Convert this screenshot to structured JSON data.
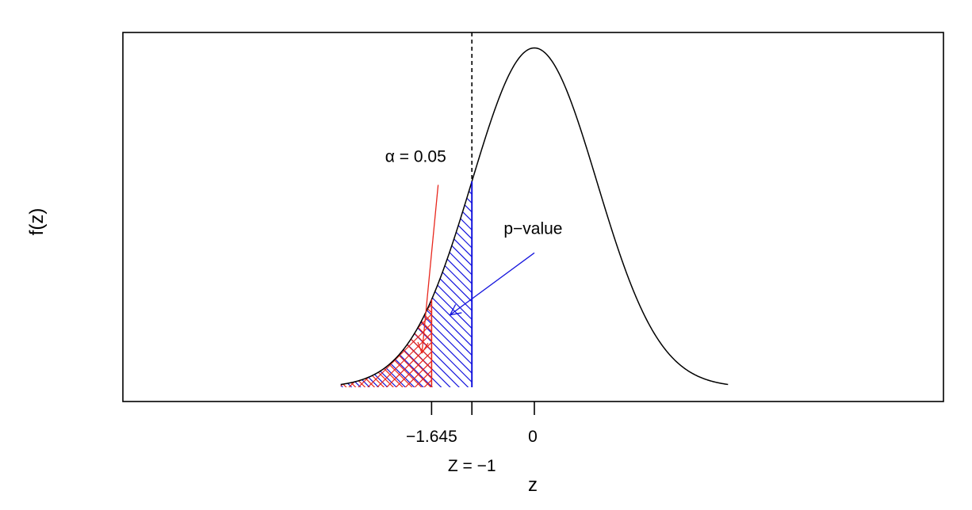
{
  "chart_data": {
    "type": "area",
    "title": "",
    "xlabel": "z",
    "ylabel": "f(z)",
    "xlim": [
      -3.1,
      3.1
    ],
    "ylim": [
      0,
      0.41
    ],
    "density": "standard normal",
    "curve_range": [
      -3.1,
      3.1
    ],
    "x_ticks": [
      {
        "value": -1.645,
        "label": "−1.645"
      },
      {
        "value": -1,
        "label": ""
      },
      {
        "value": 0,
        "label": "0"
      }
    ],
    "observed": {
      "value": -1,
      "label": "Z = −1",
      "line": "dashed"
    },
    "critical": {
      "value": -1.645
    },
    "regions": [
      {
        "name": "alpha",
        "from": -3.1,
        "to": -1.645,
        "color": "#e8281e",
        "hatch": "crosshatch"
      },
      {
        "name": "p-value",
        "from": -3.1,
        "to": -1,
        "color": "#1515dd",
        "hatch": "diagonal"
      }
    ],
    "annotations": [
      {
        "name": "alpha",
        "text": "α = 0.05",
        "color": "#e8281e",
        "text_at": [
          -1.9,
          0.265
        ],
        "arrow_from": [
          -1.54,
          0.238
        ],
        "arrow_to": [
          -1.8,
          0.04
        ]
      },
      {
        "name": "p-value",
        "text": "p−value",
        "color": "#1515dd",
        "text_at": [
          -0.02,
          0.18
        ],
        "arrow_from": [
          0,
          0.158
        ],
        "arrow_to": [
          -1.35,
          0.085
        ]
      }
    ],
    "colors": {
      "alpha": "#e8281e",
      "pvalue": "#1515dd",
      "curve": "#000000"
    }
  }
}
